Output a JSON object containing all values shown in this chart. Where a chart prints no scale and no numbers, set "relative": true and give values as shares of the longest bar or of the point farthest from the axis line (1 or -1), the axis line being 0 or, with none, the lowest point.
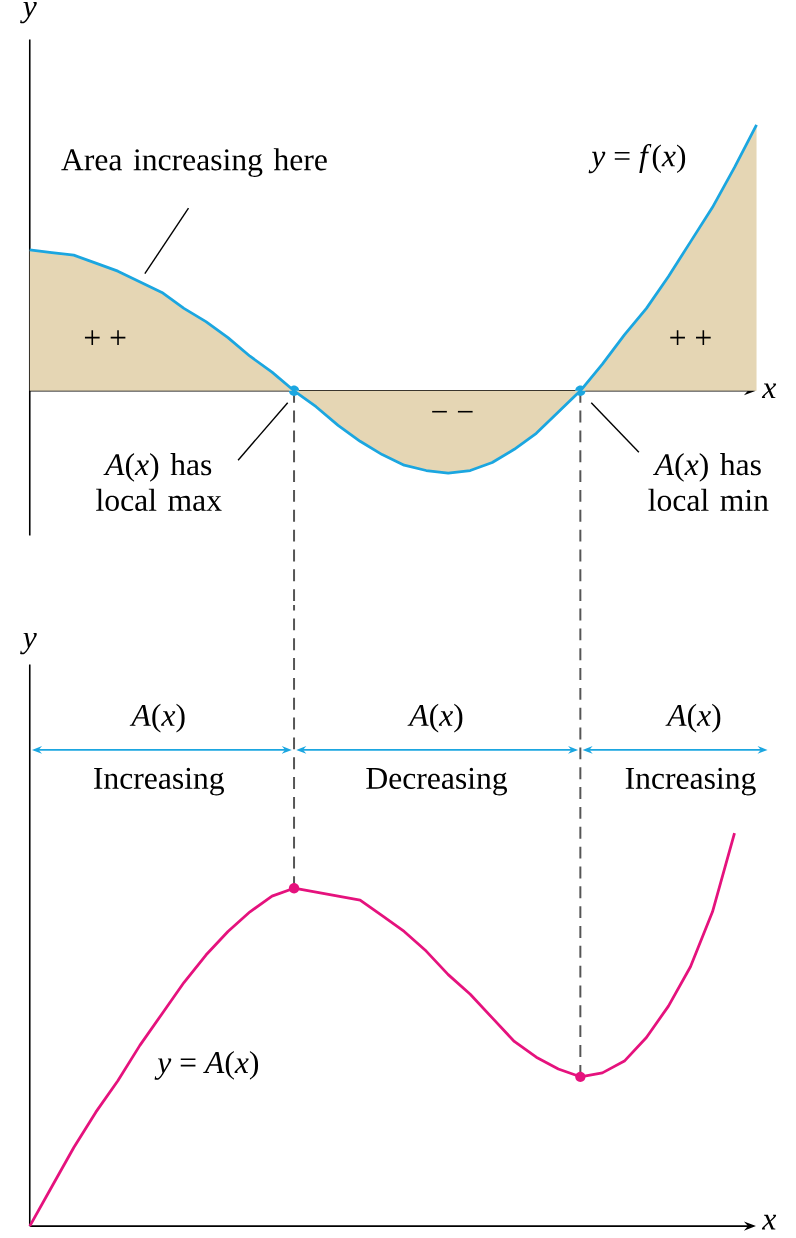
{
  "chart_data": [
    {
      "type": "area",
      "relative": true,
      "xlabel": "x",
      "ylabel": "y",
      "categories": [
        null,
        null,
        null,
        null,
        null,
        null,
        null,
        null,
        null,
        null,
        null,
        null,
        null,
        null,
        null,
        null,
        null,
        null,
        null,
        null,
        null,
        null,
        null,
        null,
        null,
        null,
        null,
        null,
        null,
        null,
        null,
        null,
        null,
        null
      ],
      "series": [
        {
          "color": "#e5d6b4",
          "values": [
            0.53,
            0.52,
            0.51,
            0.48,
            0.45,
            0.41,
            0.37,
            0.31,
            0.26,
            0.2,
            0.13,
            0.07,
            0,
            -0.06,
            -0.13,
            -0.19,
            -0.24,
            -0.28,
            -0.3,
            -0.31,
            -0.3,
            -0.27,
            -0.22,
            -0.16,
            -0.08,
            0,
            0.1,
            0.21,
            0.31,
            0.43,
            0.56,
            0.69,
            0.84,
            1
          ]
        }
      ],
      "annotations": [
        "Area increasing here",
        "*y* = *f*(*x*)",
        "+ +",
        "+ +",
        "− −",
        "*A*(*x*) has local max",
        "*A*(*x*) has local min"
      ]
    },
    {
      "type": "line",
      "relative": true,
      "xlabel": "x",
      "ylabel": "y",
      "categories": [
        null,
        null,
        null,
        null,
        null,
        null,
        null,
        null,
        null,
        null,
        null,
        null,
        null,
        null,
        null,
        null,
        null,
        null,
        null,
        null,
        null,
        null,
        null,
        null,
        null,
        null,
        null,
        null,
        null,
        null,
        null,
        null,
        null
      ],
      "series": [
        {
          "color": "#e5127d",
          "values": [
            0,
            0.1,
            0.2,
            0.29,
            0.37,
            0.46,
            0.54,
            0.62,
            0.69,
            0.75,
            0.8,
            0.84,
            0.86,
            0.85,
            0.84,
            0.83,
            0.79,
            0.75,
            0.7,
            0.64,
            0.59,
            0.53,
            0.47,
            0.43,
            0.4,
            0.38,
            0.39,
            0.42,
            0.48,
            0.56,
            0.66,
            0.8,
            1
          ]
        }
      ],
      "annotations": [
        "*A*(*x*)",
        "*A*(*x*)",
        "*A*(*x*)",
        "Increasing",
        "Decreasing",
        "Increasing",
        "*y* = *A*(*x*)"
      ]
    }
  ]
}
